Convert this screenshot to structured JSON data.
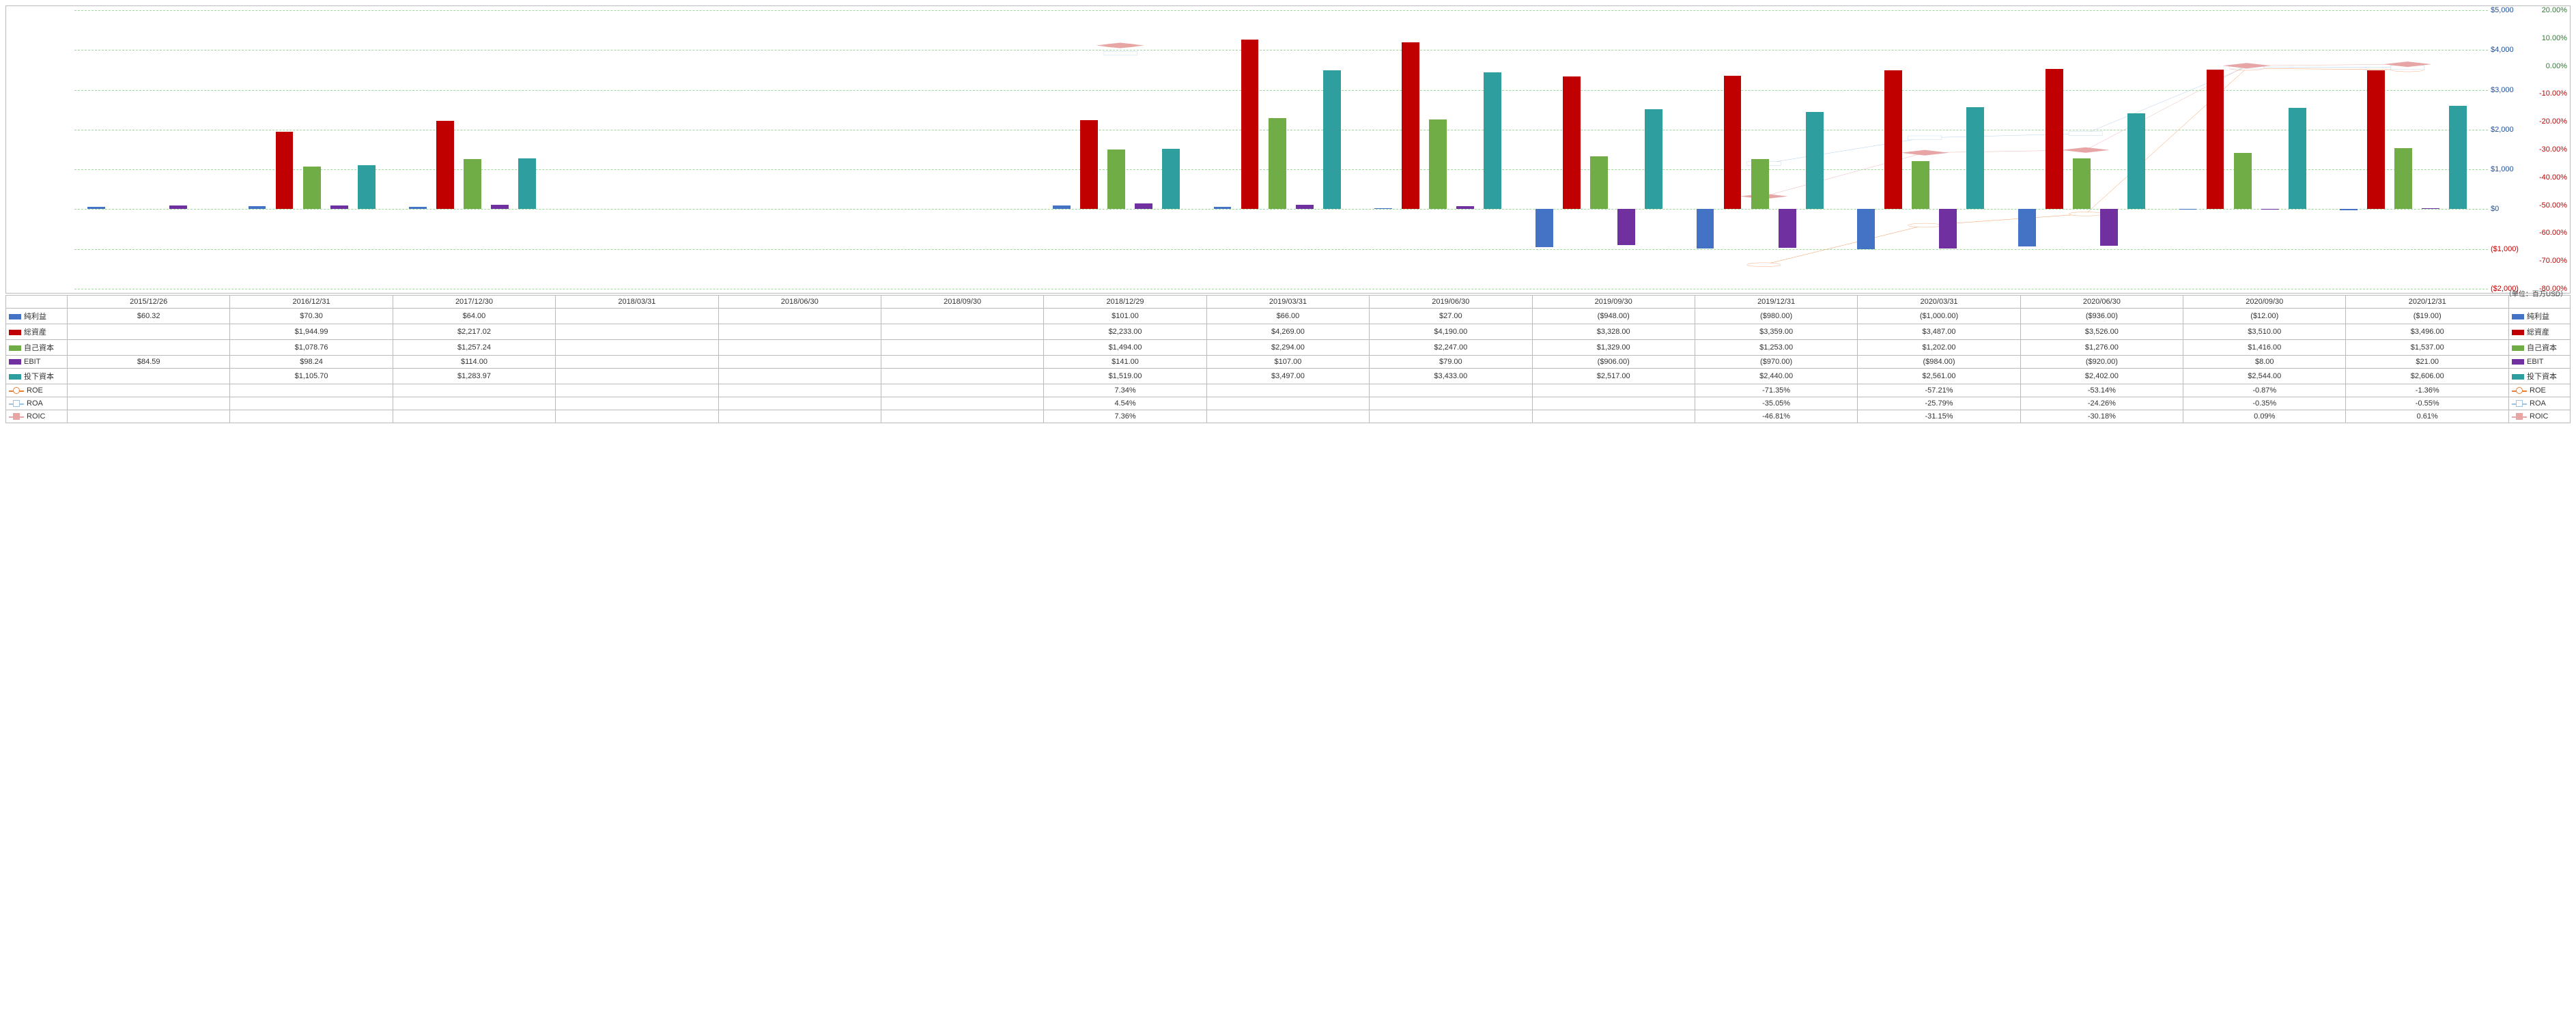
{
  "unit_label": "（単位：百万USD）",
  "periods": [
    "2015/12/26",
    "2016/12/31",
    "2017/12/30",
    "2018/03/31",
    "2018/06/30",
    "2018/09/30",
    "2018/12/29",
    "2019/03/31",
    "2019/06/30",
    "2019/09/30",
    "2019/12/31",
    "2020/03/31",
    "2020/06/30",
    "2020/09/30",
    "2020/12/31"
  ],
  "y_left": {
    "min": -2000,
    "max": 5000,
    "step": 1000,
    "color": "#1f4e9b"
  },
  "y_right": {
    "min": -80,
    "max": 20,
    "step": 10,
    "color": "#c00000"
  },
  "bar_colors": {
    "純利益": "#4472c4",
    "総資産": "#c00000",
    "自己資本": "#70ad47",
    "EBIT": "#7030a0",
    "投下資本": "#2f9e9e"
  },
  "line_styles": {
    "ROE": {
      "color": "#ed7d31",
      "marker": "circle"
    },
    "ROA": {
      "color": "#9dc3e6",
      "marker": "square"
    },
    "ROIC": {
      "color": "#e8a5a5",
      "marker": "diamond"
    }
  },
  "bars": {
    "純利益": [
      60.32,
      70.3,
      64.0,
      null,
      null,
      null,
      101.0,
      66.0,
      27.0,
      -948.0,
      -980.0,
      -1000.0,
      -936.0,
      -12.0,
      -19.0
    ],
    "総資産": [
      null,
      1944.99,
      2217.02,
      null,
      null,
      null,
      2233.0,
      4269.0,
      4190.0,
      3328.0,
      3359.0,
      3487.0,
      3526.0,
      3510.0,
      3496.0
    ],
    "自己資本": [
      null,
      1078.76,
      1257.24,
      null,
      null,
      null,
      1494.0,
      2294.0,
      2247.0,
      1329.0,
      1253.0,
      1202.0,
      1276.0,
      1416.0,
      1537.0
    ],
    "EBIT": [
      84.59,
      98.24,
      114.0,
      null,
      null,
      null,
      141.0,
      107.0,
      79.0,
      -906.0,
      -970.0,
      -984.0,
      -920.0,
      8.0,
      21.0
    ],
    "投下資本": [
      null,
      1105.7,
      1283.97,
      null,
      null,
      null,
      1519.0,
      3497.0,
      3433.0,
      2517.0,
      2440.0,
      2561.0,
      2402.0,
      2544.0,
      2606.0
    ]
  },
  "lines": {
    "ROE": [
      null,
      null,
      null,
      null,
      null,
      null,
      7.34,
      null,
      null,
      null,
      -71.35,
      -57.21,
      -53.14,
      -0.87,
      -1.36
    ],
    "ROA": [
      null,
      null,
      null,
      null,
      null,
      null,
      4.54,
      null,
      null,
      null,
      -35.05,
      -25.79,
      -24.26,
      -0.35,
      -0.55
    ],
    "ROIC": [
      null,
      null,
      null,
      null,
      null,
      null,
      7.36,
      null,
      null,
      null,
      -46.81,
      -31.15,
      -30.18,
      0.09,
      0.61
    ]
  },
  "table_rows": [
    {
      "key": "純利益",
      "type": "bar",
      "fmt": "money",
      "vals": [
        "$60.32",
        "$70.30",
        "$64.00",
        "",
        "",
        "",
        "$101.00",
        "$66.00",
        "$27.00",
        "($948.00)",
        "($980.00)",
        "($1,000.00)",
        "($936.00)",
        "($12.00)",
        "($19.00)"
      ]
    },
    {
      "key": "総資産",
      "type": "bar",
      "fmt": "money",
      "vals": [
        "",
        "$1,944.99",
        "$2,217.02",
        "",
        "",
        "",
        "$2,233.00",
        "$4,269.00",
        "$4,190.00",
        "$3,328.00",
        "$3,359.00",
        "$3,487.00",
        "$3,526.00",
        "$3,510.00",
        "$3,496.00"
      ]
    },
    {
      "key": "自己資本",
      "type": "bar",
      "fmt": "money",
      "vals": [
        "",
        "$1,078.76",
        "$1,257.24",
        "",
        "",
        "",
        "$1,494.00",
        "$2,294.00",
        "$2,247.00",
        "$1,329.00",
        "$1,253.00",
        "$1,202.00",
        "$1,276.00",
        "$1,416.00",
        "$1,537.00"
      ]
    },
    {
      "key": "EBIT",
      "type": "bar",
      "fmt": "money",
      "vals": [
        "$84.59",
        "$98.24",
        "$114.00",
        "",
        "",
        "",
        "$141.00",
        "$107.00",
        "$79.00",
        "($906.00)",
        "($970.00)",
        "($984.00)",
        "($920.00)",
        "$8.00",
        "$21.00"
      ]
    },
    {
      "key": "投下資本",
      "type": "bar",
      "fmt": "money",
      "vals": [
        "",
        "$1,105.70",
        "$1,283.97",
        "",
        "",
        "",
        "$1,519.00",
        "$3,497.00",
        "$3,433.00",
        "$2,517.00",
        "$2,440.00",
        "$2,561.00",
        "$2,402.00",
        "$2,544.00",
        "$2,606.00"
      ]
    },
    {
      "key": "ROE",
      "type": "line",
      "fmt": "pct",
      "vals": [
        "",
        "",
        "",
        "",
        "",
        "",
        "7.34%",
        "",
        "",
        "",
        "-71.35%",
        "-57.21%",
        "-53.14%",
        "-0.87%",
        "-1.36%"
      ]
    },
    {
      "key": "ROA",
      "type": "line",
      "fmt": "pct",
      "vals": [
        "",
        "",
        "",
        "",
        "",
        "",
        "4.54%",
        "",
        "",
        "",
        "-35.05%",
        "-25.79%",
        "-24.26%",
        "-0.35%",
        "-0.55%"
      ]
    },
    {
      "key": "ROIC",
      "type": "line",
      "fmt": "pct",
      "vals": [
        "",
        "",
        "",
        "",
        "",
        "",
        "7.36%",
        "",
        "",
        "",
        "-46.81%",
        "-31.15%",
        "-30.18%",
        "0.09%",
        "0.61%"
      ]
    }
  ]
}
